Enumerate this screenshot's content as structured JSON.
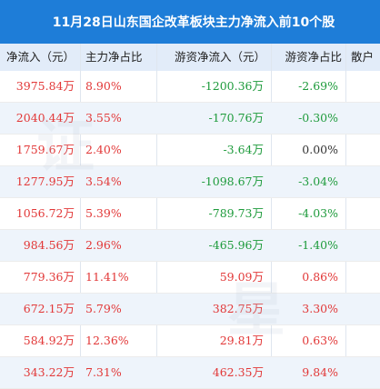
{
  "title": "11月28日山东国企改革板块主力净流入前10个股",
  "headers": {
    "main_net_inflow": "净流入（元）",
    "main_net_ratio": "主力净占比",
    "retail_net_inflow": "游资净流入（元）",
    "retail_net_ratio": "游资净占比",
    "individual": "散户"
  },
  "rows": [
    {
      "main_net": "3975.84万",
      "main_ratio": "8.90%",
      "hot_net": "-1200.36万",
      "hot_ratio": "-2.69%"
    },
    {
      "main_net": "2040.44万",
      "main_ratio": "3.55%",
      "hot_net": "-170.76万",
      "hot_ratio": "-0.30%"
    },
    {
      "main_net": "1759.67万",
      "main_ratio": "2.40%",
      "hot_net": "-3.64万",
      "hot_ratio": "0.00%"
    },
    {
      "main_net": "1277.95万",
      "main_ratio": "3.54%",
      "hot_net": "-1098.67万",
      "hot_ratio": "-3.04%"
    },
    {
      "main_net": "1056.72万",
      "main_ratio": "5.39%",
      "hot_net": "-789.73万",
      "hot_ratio": "-4.03%"
    },
    {
      "main_net": "984.56万",
      "main_ratio": "2.96%",
      "hot_net": "-465.96万",
      "hot_ratio": "-1.40%"
    },
    {
      "main_net": "779.36万",
      "main_ratio": "11.41%",
      "hot_net": "59.09万",
      "hot_ratio": "0.86%"
    },
    {
      "main_net": "672.15万",
      "main_ratio": "5.79%",
      "hot_net": "382.75万",
      "hot_ratio": "3.30%"
    },
    {
      "main_net": "584.92万",
      "main_ratio": "12.36%",
      "hot_net": "29.81万",
      "hot_ratio": "0.63%"
    },
    {
      "main_net": "343.22万",
      "main_ratio": "7.31%",
      "hot_net": "462.35万",
      "hot_ratio": "9.84%"
    }
  ],
  "colors": {
    "header_bg": "#1e7dd8",
    "positive": "#e23838",
    "negative": "#1e9b3c"
  }
}
